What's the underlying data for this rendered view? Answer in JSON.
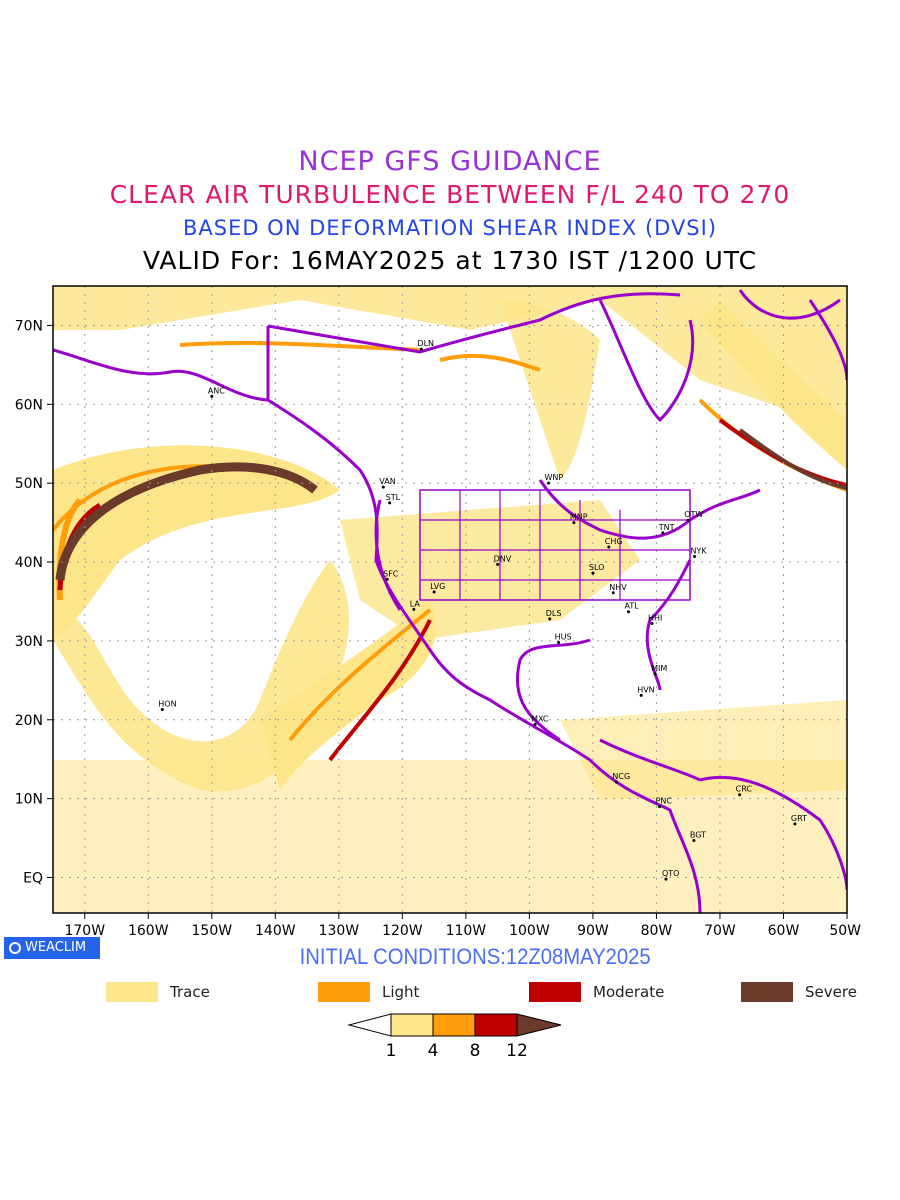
{
  "titles": {
    "line1": "NCEP GFS GUIDANCE",
    "line2": "CLEAR AIR TURBULENCE BETWEEN F/L 240 TO 270",
    "line3": "BASED ON DEFORMATION SHEAR INDEX (DVSI)",
    "line4": "VALID For: 16MAY2025 at 1730 IST /1200 UTC"
  },
  "lat_ticks": [
    "70N",
    "60N",
    "50N",
    "40N",
    "30N",
    "20N",
    "10N",
    "EQ"
  ],
  "lon_ticks": [
    "170W",
    "160W",
    "150W",
    "140W",
    "130W",
    "120W",
    "110W",
    "100W",
    "90W",
    "80W",
    "70W",
    "60W",
    "50W"
  ],
  "stations": [
    {
      "label": "ANC",
      "lon": -150,
      "lat": 61
    },
    {
      "label": "DLN",
      "lon": -117,
      "lat": 67
    },
    {
      "label": "VAN",
      "lon": -123,
      "lat": 49.5
    },
    {
      "label": "STL",
      "lon": -122,
      "lat": 47.5
    },
    {
      "label": "WNP",
      "lon": -97,
      "lat": 50
    },
    {
      "label": "MNP",
      "lon": -93,
      "lat": 45
    },
    {
      "label": "OTW",
      "lon": -75,
      "lat": 45.3
    },
    {
      "label": "TNT",
      "lon": -79,
      "lat": 43.7
    },
    {
      "label": "CHG",
      "lon": -87.5,
      "lat": 41.9
    },
    {
      "label": "NYK",
      "lon": -74,
      "lat": 40.7
    },
    {
      "label": "DNV",
      "lon": -105,
      "lat": 39.7
    },
    {
      "label": "SLO",
      "lon": -90,
      "lat": 38.6
    },
    {
      "label": "SFC",
      "lon": -122.4,
      "lat": 37.8
    },
    {
      "label": "LVG",
      "lon": -115,
      "lat": 36.2
    },
    {
      "label": "NHV",
      "lon": -86.8,
      "lat": 36.1
    },
    {
      "label": "LA",
      "lon": -118.2,
      "lat": 34
    },
    {
      "label": "ATL",
      "lon": -84.4,
      "lat": 33.7
    },
    {
      "label": "DLS",
      "lon": -96.8,
      "lat": 32.8
    },
    {
      "label": "HHI",
      "lon": -80.7,
      "lat": 32.2
    },
    {
      "label": "HUS",
      "lon": -95.4,
      "lat": 29.8
    },
    {
      "label": "MIM",
      "lon": -80.2,
      "lat": 25.8
    },
    {
      "label": "HVN",
      "lon": -82.4,
      "lat": 23.1
    },
    {
      "label": "HON",
      "lon": -157.8,
      "lat": 21.3
    },
    {
      "label": "MXC",
      "lon": -99.1,
      "lat": 19.4
    },
    {
      "label": "NCG",
      "lon": -86.3,
      "lat": 12.1
    },
    {
      "label": "CRC",
      "lon": -66.9,
      "lat": 10.5
    },
    {
      "label": "PNC",
      "lon": -79.5,
      "lat": 9
    },
    {
      "label": "GRT",
      "lon": -58.2,
      "lat": 6.8
    },
    {
      "label": "BGT",
      "lon": -74.1,
      "lat": 4.7
    },
    {
      "label": "QTO",
      "lon": -78.5,
      "lat": -0.2
    }
  ],
  "badge": {
    "label": "WEACLIM",
    "icon": "circle-logo-icon"
  },
  "initial_conditions": "INITIAL CONDITIONS:12Z08MAY2025",
  "legend": [
    {
      "label": "Trace",
      "color": "#fde58a"
    },
    {
      "label": "Light",
      "color": "#ff9d0a"
    },
    {
      "label": "Moderate",
      "color": "#c00000"
    },
    {
      "label": "Severe",
      "color": "#6b3a2a"
    }
  ],
  "colorbar": {
    "ticks": [
      "1",
      "4",
      "8",
      "12"
    ],
    "colors": [
      "#ffffff",
      "#fde58a",
      "#ff9d0a",
      "#c00000",
      "#6b3a2a"
    ]
  },
  "colors": {
    "boundaries": "#9900cc",
    "grid": "#9a9a9a"
  }
}
